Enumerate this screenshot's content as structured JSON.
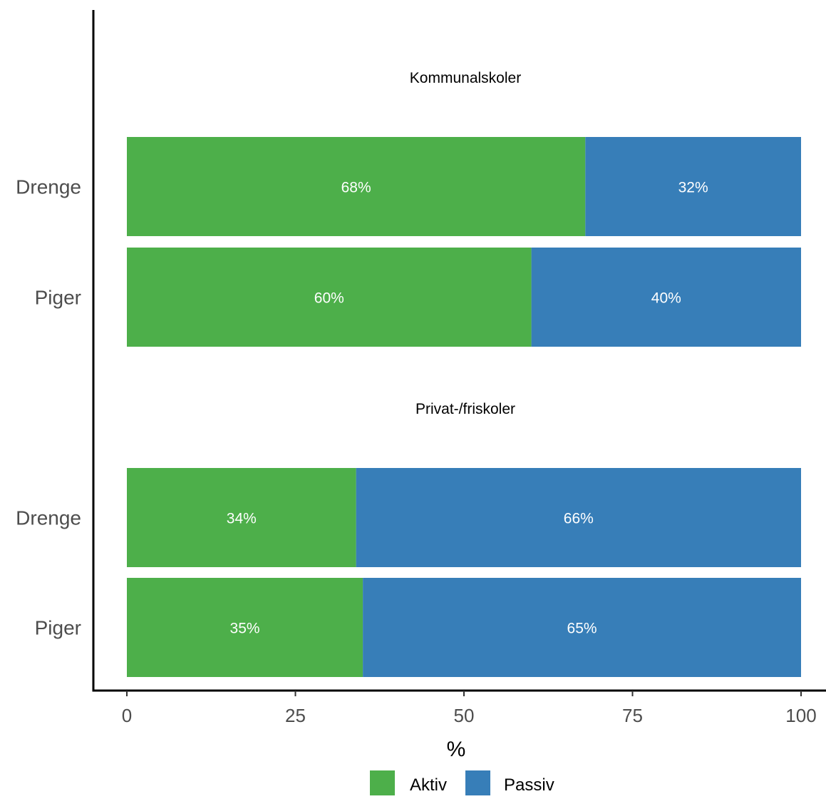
{
  "chart_data": {
    "type": "bar",
    "orientation": "horizontal",
    "stacked": true,
    "xlabel": "%",
    "xlim": [
      0,
      100
    ],
    "xticks": [
      0,
      25,
      50,
      75,
      100
    ],
    "grid": false,
    "legend_position": "bottom",
    "panels": [
      {
        "title": "Kommunalskoler",
        "categories": [
          "Drenge",
          "Piger"
        ],
        "series": [
          {
            "name": "Aktiv",
            "values": [
              68,
              60
            ],
            "labels": [
              "68%",
              "60%"
            ]
          },
          {
            "name": "Passiv",
            "values": [
              32,
              40
            ],
            "labels": [
              "32%",
              "40%"
            ]
          }
        ]
      },
      {
        "title": "Privat-/friskoler",
        "categories": [
          "Drenge",
          "Piger"
        ],
        "series": [
          {
            "name": "Aktiv",
            "values": [
              34,
              35
            ],
            "labels": [
              "34%",
              "35%"
            ]
          },
          {
            "name": "Passiv",
            "values": [
              66,
              65
            ],
            "labels": [
              "66%",
              "65%"
            ]
          }
        ]
      }
    ],
    "legend": [
      {
        "name": "Aktiv",
        "color": "#4daf4a"
      },
      {
        "name": "Passiv",
        "color": "#377eb8"
      }
    ]
  }
}
